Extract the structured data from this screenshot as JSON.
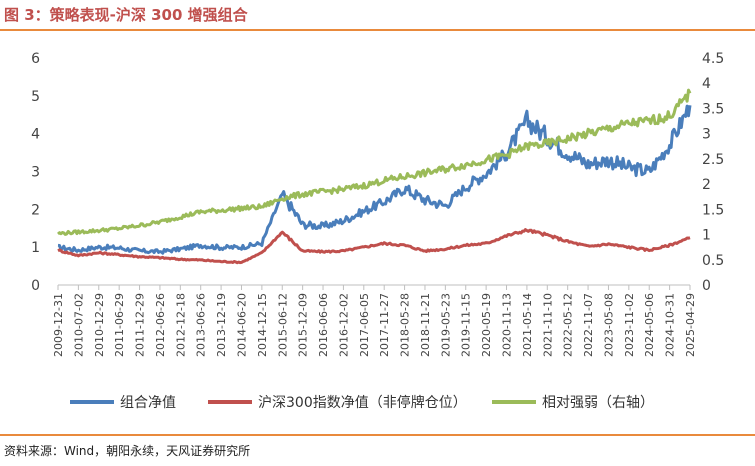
{
  "header": {
    "title": "图 3：策略表现-沪深 300 增强组合"
  },
  "footer": {
    "source": "资料来源：Wind，朝阳永续，天风证券研究所"
  },
  "chart_data": {
    "type": "line",
    "x_tick_labels": [
      "2009-12-31",
      "2010-07-02",
      "2010-12-29",
      "2011-06-29",
      "2011-12-29",
      "2012-06-26",
      "2012-12-18",
      "2013-06-26",
      "2013-12-19",
      "2014-06-20",
      "2014-12-15",
      "2015-06-12",
      "2015-12-09",
      "2016-06-06",
      "2016-12-02",
      "2017-06-05",
      "2017-11-27",
      "2018-05-28",
      "2018-11-21",
      "2019-05-23",
      "2019-11-15",
      "2020-05-19",
      "2020-11-13",
      "2021-05-14",
      "2021-11-10",
      "2022-05-12",
      "2022-11-07",
      "2023-05-08",
      "2023-11-02",
      "2024-05-06",
      "2024-10-31",
      "2025-04-29"
    ],
    "y_left": {
      "ticks": [
        "0",
        "1",
        "2",
        "3",
        "4",
        "5",
        "6"
      ],
      "lim": [
        0,
        6
      ]
    },
    "y_right": {
      "ticks": [
        "0",
        "0.5",
        "1",
        "1.5",
        "2",
        "2.5",
        "3",
        "3.5",
        "4",
        "4.5"
      ],
      "lim": [
        0,
        4.5
      ]
    },
    "grid": false,
    "legend_position": "bottom",
    "series": [
      {
        "name": "组合净值",
        "axis": "left",
        "color": "#4a7ebb",
        "values": [
          1.0,
          0.92,
          1.0,
          0.98,
          0.9,
          0.88,
          0.95,
          1.05,
          0.99,
          1.0,
          1.1,
          2.4,
          1.6,
          1.55,
          1.7,
          1.95,
          2.2,
          2.55,
          2.25,
          2.1,
          2.6,
          2.95,
          3.5,
          4.35,
          3.9,
          3.5,
          3.2,
          3.3,
          3.1,
          3.0,
          3.7,
          4.75
        ]
      },
      {
        "name": "沪深300指数净值（非停牌仓位）",
        "axis": "left",
        "color": "#c0504d",
        "values": [
          0.92,
          0.78,
          0.85,
          0.8,
          0.75,
          0.72,
          0.68,
          0.66,
          0.62,
          0.6,
          0.85,
          1.4,
          0.9,
          0.88,
          0.9,
          1.0,
          1.1,
          1.05,
          0.9,
          0.95,
          1.05,
          1.1,
          1.3,
          1.45,
          1.32,
          1.15,
          1.02,
          1.08,
          1.0,
          0.92,
          1.05,
          1.25
        ]
      },
      {
        "name": "相对强弱（右轴）",
        "axis": "right",
        "color": "#9bbb59",
        "values": [
          1.02,
          1.05,
          1.08,
          1.12,
          1.18,
          1.25,
          1.35,
          1.45,
          1.48,
          1.52,
          1.55,
          1.72,
          1.8,
          1.85,
          1.9,
          1.97,
          2.07,
          2.15,
          2.22,
          2.3,
          2.38,
          2.48,
          2.58,
          2.75,
          2.8,
          2.9,
          3.0,
          3.1,
          3.2,
          3.25,
          3.35,
          3.8
        ]
      }
    ]
  }
}
